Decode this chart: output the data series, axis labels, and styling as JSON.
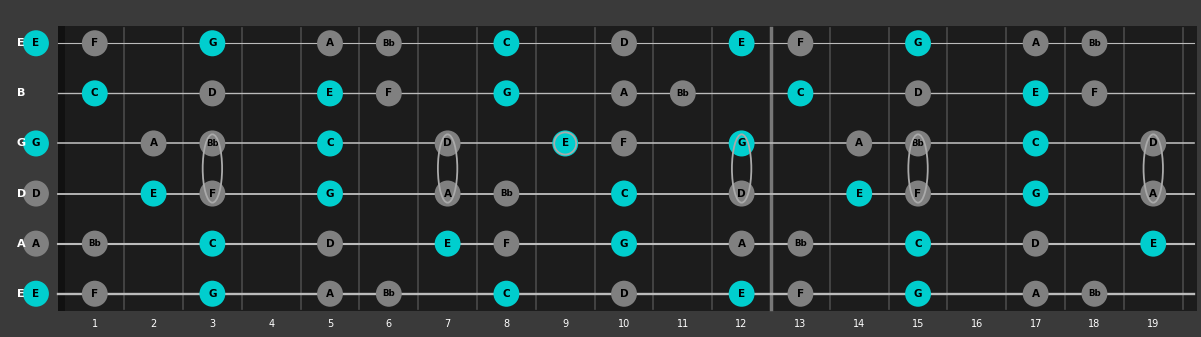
{
  "bg_color": "#3a3a3a",
  "fretboard_color": "#1c1c1c",
  "string_color": "#bbbbbb",
  "fret_color": "#4a4a4a",
  "nut_color": "#111111",
  "cyan_color": "#00cece",
  "gray_color": "#808080",
  "text_color": "#000000",
  "label_color": "#ffffff",
  "open_outline_color": "#aaaaaa",
  "strings": [
    "E",
    "B",
    "G",
    "D",
    "A",
    "E"
  ],
  "num_frets": 19,
  "fret_numbers": [
    1,
    2,
    3,
    4,
    5,
    6,
    7,
    8,
    9,
    10,
    11,
    12,
    13,
    14,
    15,
    16,
    17,
    18,
    19
  ],
  "notes": [
    {
      "string": 0,
      "fret": 0,
      "label": "E",
      "color": "cyan"
    },
    {
      "string": 0,
      "fret": 1,
      "label": "F",
      "color": "gray"
    },
    {
      "string": 0,
      "fret": 3,
      "label": "G",
      "color": "cyan"
    },
    {
      "string": 0,
      "fret": 5,
      "label": "A",
      "color": "gray"
    },
    {
      "string": 0,
      "fret": 6,
      "label": "Bb",
      "color": "gray"
    },
    {
      "string": 0,
      "fret": 8,
      "label": "C",
      "color": "cyan"
    },
    {
      "string": 0,
      "fret": 10,
      "label": "D",
      "color": "gray"
    },
    {
      "string": 0,
      "fret": 12,
      "label": "E",
      "color": "cyan"
    },
    {
      "string": 0,
      "fret": 13,
      "label": "F",
      "color": "gray"
    },
    {
      "string": 0,
      "fret": 15,
      "label": "G",
      "color": "cyan"
    },
    {
      "string": 0,
      "fret": 17,
      "label": "A",
      "color": "gray"
    },
    {
      "string": 0,
      "fret": 18,
      "label": "Bb",
      "color": "gray"
    },
    {
      "string": 1,
      "fret": 1,
      "label": "C",
      "color": "cyan"
    },
    {
      "string": 1,
      "fret": 3,
      "label": "D",
      "color": "gray"
    },
    {
      "string": 1,
      "fret": 5,
      "label": "E",
      "color": "cyan"
    },
    {
      "string": 1,
      "fret": 6,
      "label": "F",
      "color": "gray"
    },
    {
      "string": 1,
      "fret": 8,
      "label": "G",
      "color": "cyan"
    },
    {
      "string": 1,
      "fret": 10,
      "label": "A",
      "color": "gray"
    },
    {
      "string": 1,
      "fret": 11,
      "label": "Bb",
      "color": "gray"
    },
    {
      "string": 1,
      "fret": 13,
      "label": "C",
      "color": "cyan"
    },
    {
      "string": 1,
      "fret": 15,
      "label": "D",
      "color": "gray"
    },
    {
      "string": 1,
      "fret": 17,
      "label": "E",
      "color": "cyan"
    },
    {
      "string": 1,
      "fret": 18,
      "label": "F",
      "color": "gray"
    },
    {
      "string": 2,
      "fret": 0,
      "label": "G",
      "color": "cyan"
    },
    {
      "string": 2,
      "fret": 2,
      "label": "A",
      "color": "gray"
    },
    {
      "string": 2,
      "fret": 3,
      "label": "Bb",
      "color": "gray"
    },
    {
      "string": 2,
      "fret": 5,
      "label": "C",
      "color": "cyan"
    },
    {
      "string": 2,
      "fret": 7,
      "label": "D",
      "color": "gray"
    },
    {
      "string": 2,
      "fret": 9,
      "label": "E",
      "color": "cyan"
    },
    {
      "string": 2,
      "fret": 10,
      "label": "F",
      "color": "gray"
    },
    {
      "string": 2,
      "fret": 12,
      "label": "G",
      "color": "cyan"
    },
    {
      "string": 2,
      "fret": 14,
      "label": "A",
      "color": "gray"
    },
    {
      "string": 2,
      "fret": 15,
      "label": "Bb",
      "color": "gray"
    },
    {
      "string": 2,
      "fret": 17,
      "label": "C",
      "color": "cyan"
    },
    {
      "string": 2,
      "fret": 19,
      "label": "D",
      "color": "gray"
    },
    {
      "string": 3,
      "fret": 0,
      "label": "D",
      "color": "gray"
    },
    {
      "string": 3,
      "fret": 2,
      "label": "E",
      "color": "cyan"
    },
    {
      "string": 3,
      "fret": 3,
      "label": "F",
      "color": "gray"
    },
    {
      "string": 3,
      "fret": 5,
      "label": "G",
      "color": "cyan"
    },
    {
      "string": 3,
      "fret": 7,
      "label": "A",
      "color": "gray"
    },
    {
      "string": 3,
      "fret": 8,
      "label": "Bb",
      "color": "gray"
    },
    {
      "string": 3,
      "fret": 10,
      "label": "C",
      "color": "cyan"
    },
    {
      "string": 3,
      "fret": 12,
      "label": "D",
      "color": "gray"
    },
    {
      "string": 3,
      "fret": 14,
      "label": "E",
      "color": "cyan"
    },
    {
      "string": 3,
      "fret": 15,
      "label": "F",
      "color": "gray"
    },
    {
      "string": 3,
      "fret": 17,
      "label": "G",
      "color": "cyan"
    },
    {
      "string": 3,
      "fret": 19,
      "label": "A",
      "color": "gray"
    },
    {
      "string": 4,
      "fret": 0,
      "label": "A",
      "color": "gray"
    },
    {
      "string": 4,
      "fret": 1,
      "label": "Bb",
      "color": "gray"
    },
    {
      "string": 4,
      "fret": 3,
      "label": "C",
      "color": "cyan"
    },
    {
      "string": 4,
      "fret": 5,
      "label": "D",
      "color": "gray"
    },
    {
      "string": 4,
      "fret": 7,
      "label": "E",
      "color": "cyan"
    },
    {
      "string": 4,
      "fret": 8,
      "label": "F",
      "color": "gray"
    },
    {
      "string": 4,
      "fret": 10,
      "label": "G",
      "color": "cyan"
    },
    {
      "string": 4,
      "fret": 12,
      "label": "A",
      "color": "gray"
    },
    {
      "string": 4,
      "fret": 13,
      "label": "Bb",
      "color": "gray"
    },
    {
      "string": 4,
      "fret": 15,
      "label": "C",
      "color": "cyan"
    },
    {
      "string": 4,
      "fret": 17,
      "label": "D",
      "color": "gray"
    },
    {
      "string": 4,
      "fret": 19,
      "label": "E",
      "color": "cyan"
    },
    {
      "string": 5,
      "fret": 0,
      "label": "E",
      "color": "cyan"
    },
    {
      "string": 5,
      "fret": 1,
      "label": "F",
      "color": "gray"
    },
    {
      "string": 5,
      "fret": 3,
      "label": "G",
      "color": "cyan"
    },
    {
      "string": 5,
      "fret": 5,
      "label": "A",
      "color": "gray"
    },
    {
      "string": 5,
      "fret": 6,
      "label": "Bb",
      "color": "gray"
    },
    {
      "string": 5,
      "fret": 8,
      "label": "C",
      "color": "cyan"
    },
    {
      "string": 5,
      "fret": 10,
      "label": "D",
      "color": "gray"
    },
    {
      "string": 5,
      "fret": 12,
      "label": "E",
      "color": "cyan"
    },
    {
      "string": 5,
      "fret": 13,
      "label": "F",
      "color": "gray"
    },
    {
      "string": 5,
      "fret": 15,
      "label": "G",
      "color": "cyan"
    },
    {
      "string": 5,
      "fret": 17,
      "label": "A",
      "color": "gray"
    },
    {
      "string": 5,
      "fret": 18,
      "label": "Bb",
      "color": "gray"
    }
  ],
  "rings": [
    {
      "string": 2,
      "fret": 3
    },
    {
      "string": 3,
      "fret": 3
    },
    {
      "string": 2,
      "fret": 7
    },
    {
      "string": 3,
      "fret": 7
    },
    {
      "string": 2,
      "fret": 9
    },
    {
      "string": 2,
      "fret": 12
    },
    {
      "string": 3,
      "fret": 12
    },
    {
      "string": 2,
      "fret": 15
    },
    {
      "string": 3,
      "fret": 15
    },
    {
      "string": 2,
      "fret": 19
    },
    {
      "string": 3,
      "fret": 19
    }
  ],
  "figsize": [
    12.01,
    3.37
  ],
  "dpi": 100
}
